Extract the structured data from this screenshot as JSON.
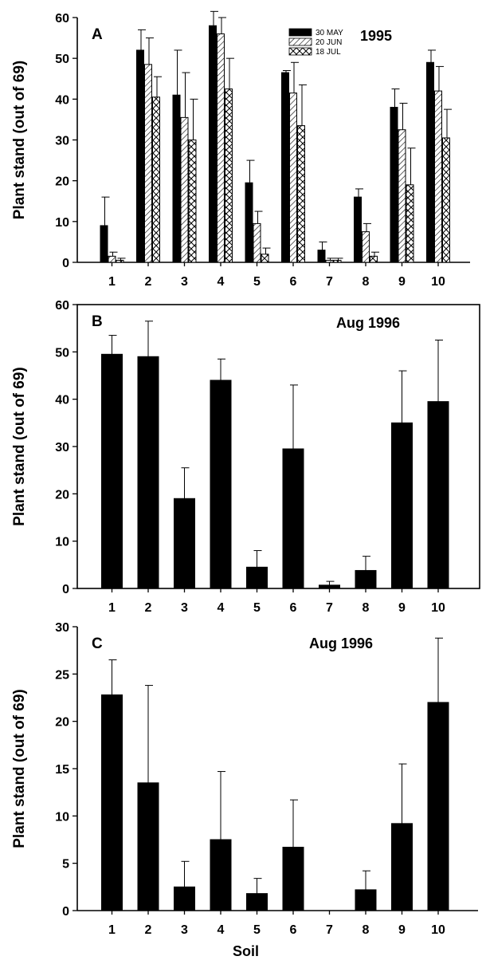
{
  "chart_data": [
    {
      "id": "A",
      "type": "bar",
      "panel_label": "A",
      "title": "1995",
      "ylabel": "Plant stand (out of 69)",
      "xlabel": "",
      "ylim": [
        0,
        60
      ],
      "yticks": [
        0,
        10,
        20,
        30,
        40,
        50,
        60
      ],
      "categories": [
        "1",
        "2",
        "3",
        "4",
        "5",
        "6",
        "7",
        "8",
        "9",
        "10"
      ],
      "legend_position": "top-right",
      "series": [
        {
          "name": "30 MAY",
          "pattern": "solid",
          "values": [
            9,
            52,
            41,
            58,
            19.5,
            46.5,
            3,
            16,
            38,
            49
          ],
          "errors": [
            7,
            5,
            11,
            3.5,
            5.5,
            0.5,
            2,
            2,
            4.5,
            3
          ]
        },
        {
          "name": "20 JUN",
          "pattern": "hatch",
          "values": [
            1.5,
            48.5,
            35.5,
            56,
            9.5,
            41.5,
            0.5,
            7.5,
            32.5,
            42
          ],
          "errors": [
            1,
            6.5,
            11,
            4,
            3,
            7.5,
            0.5,
            2,
            6.5,
            6
          ]
        },
        {
          "name": "18 JUL",
          "pattern": "crosshatch",
          "values": [
            0.5,
            40.5,
            30,
            42.5,
            2,
            33.5,
            0.5,
            1.5,
            19,
            30.5
          ],
          "errors": [
            0.5,
            5,
            10,
            7.5,
            1.5,
            10,
            0.5,
            1,
            9,
            7
          ]
        }
      ]
    },
    {
      "id": "B",
      "type": "bar",
      "panel_label": "B",
      "title": "Aug 1996",
      "ylabel": "Plant stand (out of 69)",
      "xlabel": "",
      "ylim": [
        0,
        60
      ],
      "yticks": [
        0,
        10,
        20,
        30,
        40,
        50,
        60
      ],
      "categories": [
        "1",
        "2",
        "3",
        "4",
        "5",
        "6",
        "7",
        "8",
        "9",
        "10"
      ],
      "series": [
        {
          "name": "",
          "pattern": "solid",
          "values": [
            49.5,
            49,
            19,
            44,
            4.5,
            29.5,
            0.7,
            3.8,
            35,
            39.5
          ],
          "errors": [
            4,
            7.5,
            6.5,
            4.5,
            3.5,
            13.5,
            0.8,
            3,
            11,
            13
          ]
        }
      ]
    },
    {
      "id": "C",
      "type": "bar",
      "panel_label": "C",
      "title": "Aug 1996",
      "ylabel": "Plant stand (out of 69)",
      "xlabel": "Soil",
      "ylim": [
        0,
        30
      ],
      "yticks": [
        0,
        5,
        10,
        15,
        20,
        25,
        30
      ],
      "categories": [
        "1",
        "2",
        "3",
        "4",
        "5",
        "6",
        "7",
        "8",
        "9",
        "10"
      ],
      "series": [
        {
          "name": "",
          "pattern": "solid",
          "values": [
            22.8,
            13.5,
            2.5,
            7.5,
            1.8,
            6.7,
            0,
            2.2,
            9.2,
            22
          ],
          "errors": [
            3.7,
            10.3,
            2.7,
            7.2,
            1.6,
            5,
            0,
            2,
            6.3,
            6.8
          ]
        }
      ]
    }
  ]
}
